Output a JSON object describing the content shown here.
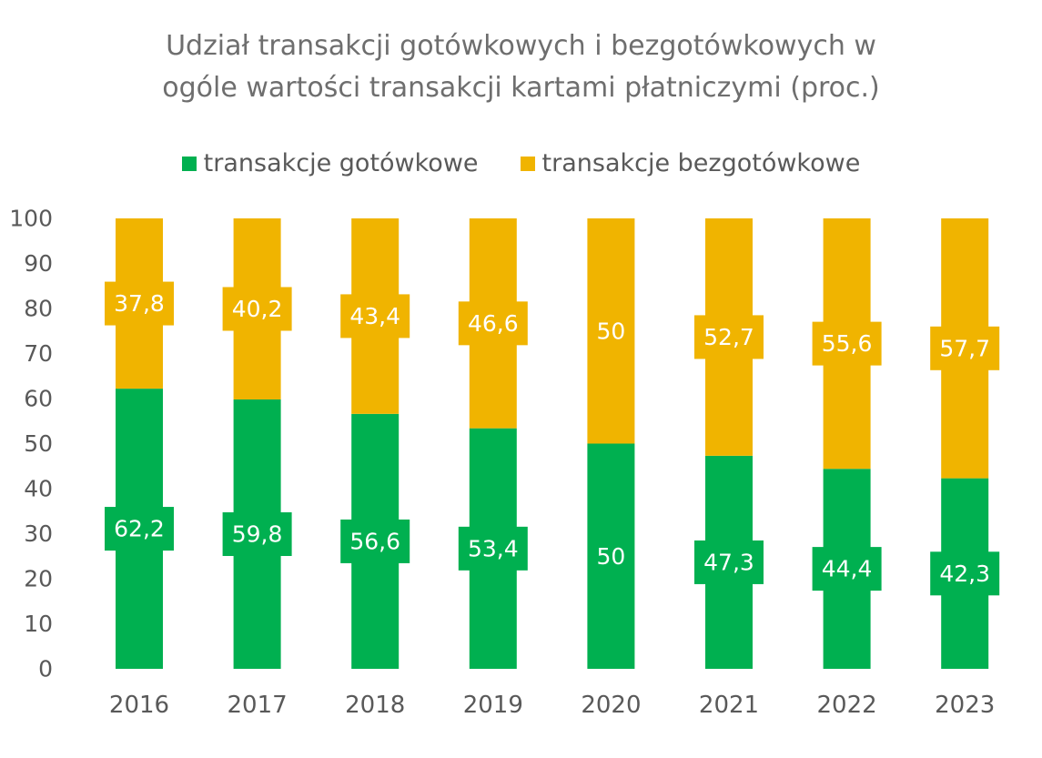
{
  "chart_data": {
    "type": "bar",
    "stacked": true,
    "title": "Udział transakcji gotówkowych i bezgotówkowych w ogóle wartości transakcji kartami płatniczymi (proc.)",
    "title_lines": [
      "Udział transakcji gotówkowych i bezgotówkowych w",
      "ogóle wartości transakcji kartami płatniczymi (proc.)"
    ],
    "categories": [
      "2016",
      "2017",
      "2018",
      "2019",
      "2020",
      "2021",
      "2022",
      "2023"
    ],
    "series": [
      {
        "name": "transakcje gotówkowe",
        "color": "#00B050",
        "values": [
          62.2,
          59.8,
          56.6,
          53.4,
          50,
          47.3,
          44.4,
          42.3
        ],
        "labels": [
          "62,2",
          "59,8",
          "56,6",
          "53,4",
          "50",
          "47,3",
          "44,4",
          "42,3"
        ]
      },
      {
        "name": "transakcje bezgotówkowe",
        "color": "#F0B400",
        "values": [
          37.8,
          40.2,
          43.4,
          46.6,
          50,
          52.7,
          55.6,
          57.7
        ],
        "labels": [
          "37,8",
          "40,2",
          "43,4",
          "46,6",
          "50",
          "52,7",
          "55,6",
          "57,7"
        ]
      }
    ],
    "ylim": [
      0,
      100
    ],
    "yticks": [
      0,
      10,
      20,
      30,
      40,
      50,
      60,
      70,
      80,
      90,
      100
    ],
    "legend_position": "top",
    "grid": false,
    "xlabel": "",
    "ylabel": ""
  }
}
